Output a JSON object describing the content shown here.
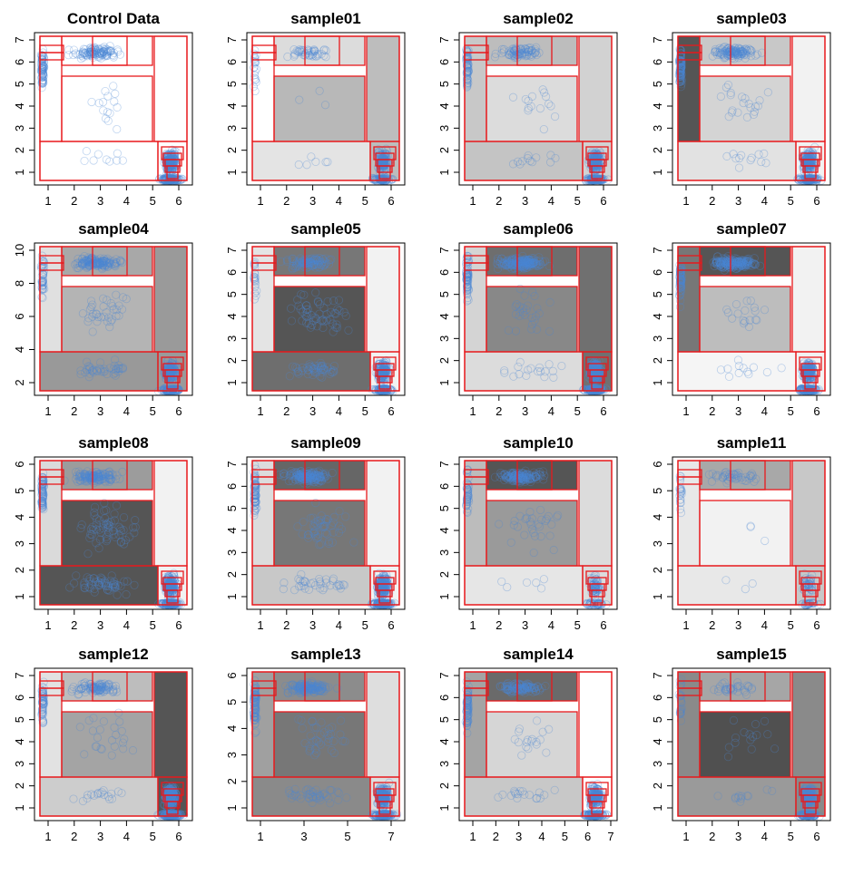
{
  "chart_data": [
    {
      "type": "scatter",
      "title": "Control Data",
      "x_ticks": [
        "1",
        "2",
        "3",
        "4",
        "5",
        "6"
      ],
      "y_ticks": [
        "1",
        "2",
        "3",
        "4",
        "5",
        "6",
        "7"
      ]
    },
    {
      "type": "scatter",
      "title": "sample01",
      "x_ticks": [
        "1",
        "2",
        "3",
        "4",
        "5",
        "6"
      ],
      "y_ticks": [
        "1",
        "2",
        "3",
        "4",
        "5",
        "6",
        "7"
      ]
    },
    {
      "type": "scatter",
      "title": "sample02",
      "x_ticks": [
        "1",
        "2",
        "3",
        "4",
        "5",
        "6"
      ],
      "y_ticks": [
        "1",
        "2",
        "3",
        "4",
        "5",
        "6",
        "7"
      ]
    },
    {
      "type": "scatter",
      "title": "sample03",
      "x_ticks": [
        "1",
        "2",
        "3",
        "4",
        "5",
        "6"
      ],
      "y_ticks": [
        "1",
        "2",
        "3",
        "4",
        "5",
        "6",
        "7"
      ]
    },
    {
      "type": "scatter",
      "title": "sample04",
      "x_ticks": [
        "1",
        "2",
        "3",
        "4",
        "5",
        "6"
      ],
      "y_ticks": [
        "2",
        "4",
        "6",
        "8",
        "10"
      ]
    },
    {
      "type": "scatter",
      "title": "sample05",
      "x_ticks": [
        "1",
        "2",
        "3",
        "4",
        "5",
        "6"
      ],
      "y_ticks": [
        "1",
        "2",
        "3",
        "4",
        "5",
        "6",
        "7"
      ]
    },
    {
      "type": "scatter",
      "title": "sample06",
      "x_ticks": [
        "1",
        "2",
        "3",
        "4",
        "5",
        "6"
      ],
      "y_ticks": [
        "1",
        "2",
        "3",
        "4",
        "5",
        "6",
        "7"
      ]
    },
    {
      "type": "scatter",
      "title": "sample07",
      "x_ticks": [
        "1",
        "2",
        "3",
        "4",
        "5",
        "6"
      ],
      "y_ticks": [
        "1",
        "2",
        "3",
        "4",
        "5",
        "6",
        "7"
      ]
    },
    {
      "type": "scatter",
      "title": "sample08",
      "x_ticks": [
        "1",
        "2",
        "3",
        "4",
        "5",
        "6"
      ],
      "y_ticks": [
        "1",
        "2",
        "3",
        "4",
        "5",
        "6"
      ]
    },
    {
      "type": "scatter",
      "title": "sample09",
      "x_ticks": [
        "1",
        "2",
        "3",
        "4",
        "5",
        "6"
      ],
      "y_ticks": [
        "1",
        "2",
        "3",
        "4",
        "5",
        "6",
        "7"
      ]
    },
    {
      "type": "scatter",
      "title": "sample10",
      "x_ticks": [
        "1",
        "2",
        "3",
        "4",
        "5",
        "6"
      ],
      "y_ticks": [
        "1",
        "2",
        "3",
        "4",
        "5",
        "6",
        "7"
      ]
    },
    {
      "type": "scatter",
      "title": "sample11",
      "x_ticks": [
        "1",
        "2",
        "3",
        "4",
        "5",
        "6"
      ],
      "y_ticks": [
        "1",
        "2",
        "3",
        "4",
        "5",
        "6"
      ]
    },
    {
      "type": "scatter",
      "title": "sample12",
      "x_ticks": [
        "1",
        "2",
        "3",
        "4",
        "5",
        "6"
      ],
      "y_ticks": [
        "1",
        "2",
        "3",
        "4",
        "5",
        "6",
        "7"
      ]
    },
    {
      "type": "scatter",
      "title": "sample13",
      "x_ticks": [
        "1",
        "3",
        "5",
        "7"
      ],
      "y_ticks": [
        "1",
        "2",
        "3",
        "4",
        "5",
        "6"
      ]
    },
    {
      "type": "scatter",
      "title": "sample14",
      "x_ticks": [
        "1",
        "2",
        "3",
        "4",
        "5",
        "6",
        "7"
      ],
      "y_ticks": [
        "1",
        "2",
        "3",
        "4",
        "5",
        "6",
        "7"
      ]
    },
    {
      "type": "scatter",
      "title": "sample15",
      "x_ticks": [
        "1",
        "2",
        "3",
        "4",
        "5",
        "6"
      ],
      "y_ticks": [
        "1",
        "2",
        "3",
        "4",
        "5",
        "6",
        "7"
      ]
    }
  ],
  "colors": {
    "point": "#4a86d4",
    "gate": "#e8191c",
    "axis": "#000000"
  }
}
